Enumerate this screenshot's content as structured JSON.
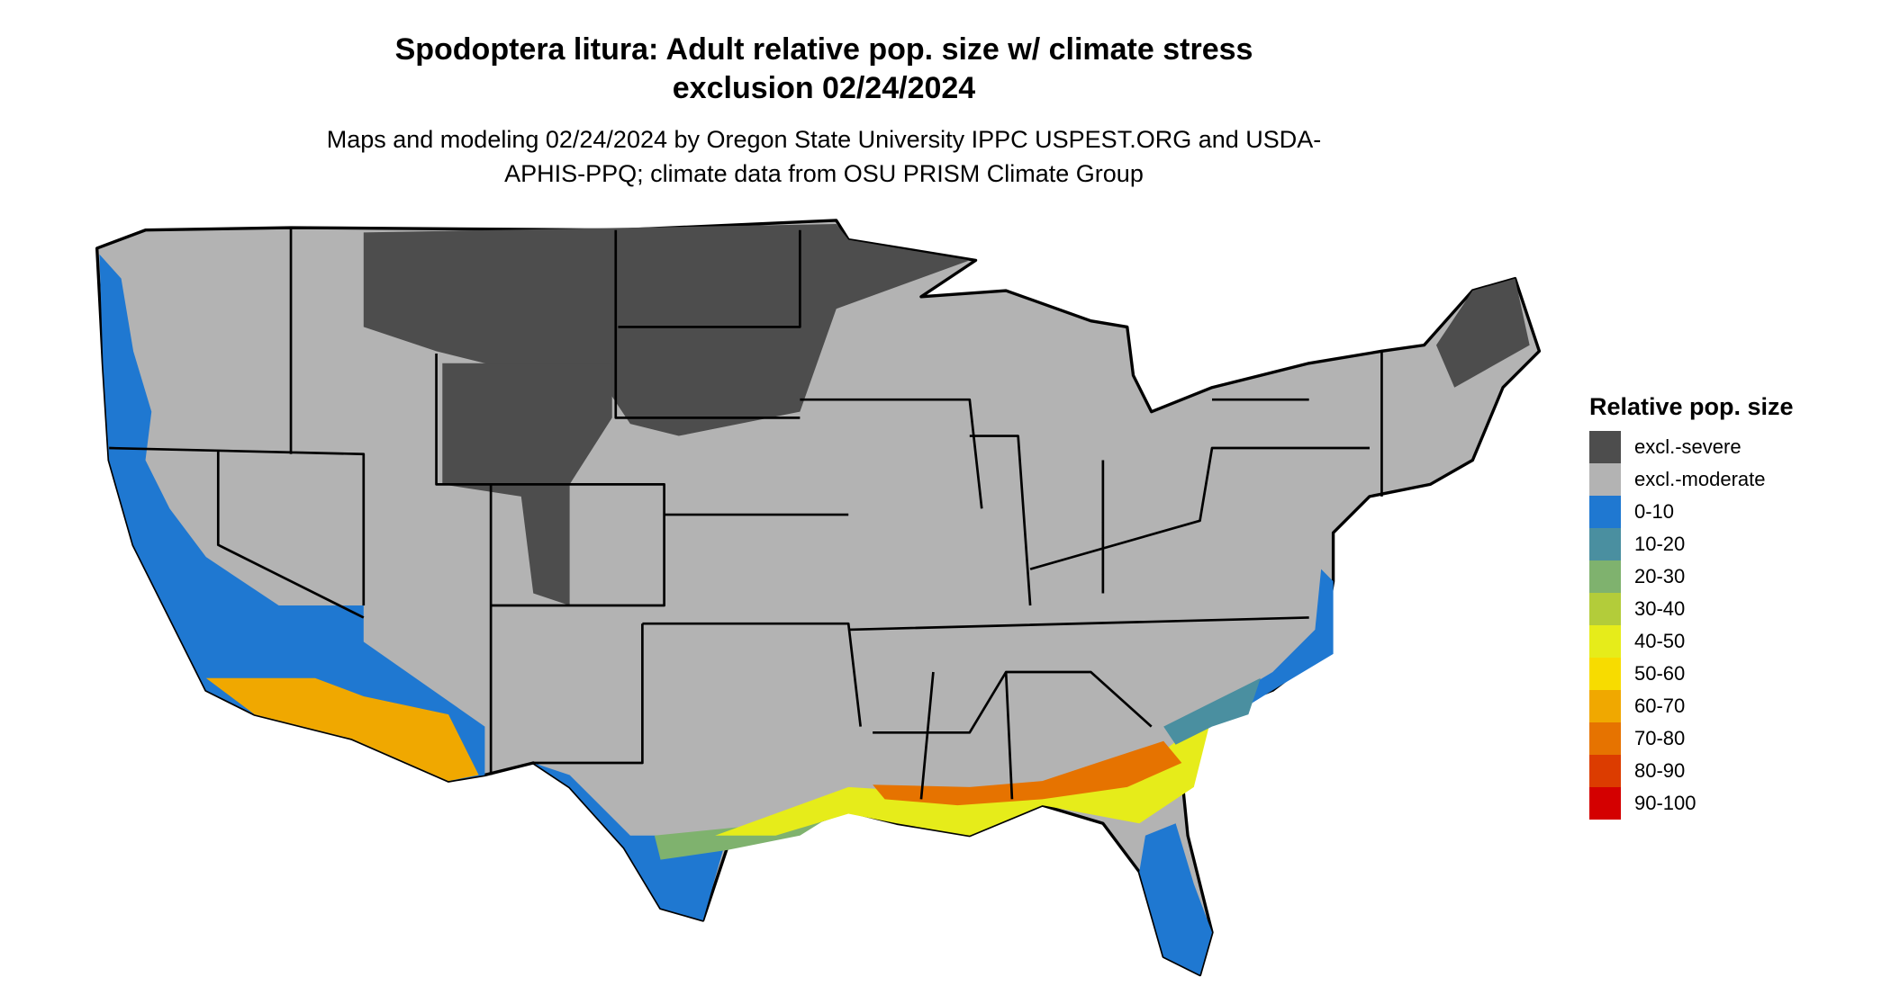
{
  "title": "Spodoptera litura: Adult relative pop. size w/ climate stress exclusion 02/24/2024",
  "subtitle": "Maps and modeling 02/24/2024 by Oregon State University IPPC USPEST.ORG and USDA-APHIS-PPQ; climate data from OSU PRISM Climate Group",
  "legend": {
    "title": "Relative pop. size",
    "items": [
      {
        "label": "excl.-severe",
        "color": "#4d4d4d"
      },
      {
        "label": "excl.-moderate",
        "color": "#b3b3b3"
      },
      {
        "label": "0-10",
        "color": "#1f78d1"
      },
      {
        "label": "10-20",
        "color": "#4a8fa0"
      },
      {
        "label": "20-30",
        "color": "#7fb26e"
      },
      {
        "label": "30-40",
        "color": "#b3cc3a"
      },
      {
        "label": "40-50",
        "color": "#e6ec1a"
      },
      {
        "label": "50-60",
        "color": "#f7dc00"
      },
      {
        "label": "60-70",
        "color": "#f0a800"
      },
      {
        "label": "70-80",
        "color": "#e67300"
      },
      {
        "label": "80-90",
        "color": "#dc3c00"
      },
      {
        "label": "90-100",
        "color": "#d40000"
      }
    ]
  }
}
